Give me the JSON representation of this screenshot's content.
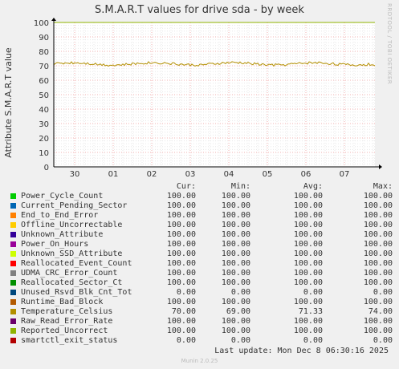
{
  "chart_data": {
    "type": "line",
    "title": "S.M.A.R.T values for drive sda - by week",
    "ylabel": "Attribute S.M.A.R.T value",
    "xlabel": "",
    "ylim": [
      0,
      100
    ],
    "yticks": [
      0,
      10,
      20,
      30,
      40,
      50,
      60,
      70,
      80,
      90,
      100
    ],
    "xticks": [
      "30",
      "01",
      "02",
      "03",
      "04",
      "05",
      "06",
      "07"
    ],
    "grid": true,
    "legend_position": "bottom",
    "columns": [
      "Cur:",
      "Min:",
      "Avg:",
      "Max:"
    ],
    "series": [
      {
        "name": "Power_Cycle_Count",
        "color": "#00cc00",
        "cur": "100.00",
        "min": "100.00",
        "avg": "100.00",
        "max": "100.00"
      },
      {
        "name": "Current_Pending_Sector",
        "color": "#0066b3",
        "cur": "100.00",
        "min": "100.00",
        "avg": "100.00",
        "max": "100.00"
      },
      {
        "name": "End_to_End_Error",
        "color": "#ff8000",
        "cur": "100.00",
        "min": "100.00",
        "avg": "100.00",
        "max": "100.00"
      },
      {
        "name": "Offline_Uncorrectable",
        "color": "#ffcc00",
        "cur": "100.00",
        "min": "100.00",
        "avg": "100.00",
        "max": "100.00"
      },
      {
        "name": "Unknown_Attribute",
        "color": "#330099",
        "cur": "100.00",
        "min": "100.00",
        "avg": "100.00",
        "max": "100.00"
      },
      {
        "name": "Power_On_Hours",
        "color": "#990099",
        "cur": "100.00",
        "min": "100.00",
        "avg": "100.00",
        "max": "100.00"
      },
      {
        "name": "Unknown_SSD_Attribute",
        "color": "#ccff00",
        "cur": "100.00",
        "min": "100.00",
        "avg": "100.00",
        "max": "100.00"
      },
      {
        "name": "Reallocated_Event_Count",
        "color": "#ff0000",
        "cur": "100.00",
        "min": "100.00",
        "avg": "100.00",
        "max": "100.00"
      },
      {
        "name": "UDMA_CRC_Error_Count",
        "color": "#808080",
        "cur": "100.00",
        "min": "100.00",
        "avg": "100.00",
        "max": "100.00"
      },
      {
        "name": "Reallocated_Sector_Ct",
        "color": "#008f00",
        "cur": "100.00",
        "min": "100.00",
        "avg": "100.00",
        "max": "100.00"
      },
      {
        "name": "Unused_Rsvd_Blk_Cnt_Tot",
        "color": "#00487d",
        "cur": "0.00",
        "min": "0.00",
        "avg": "0.00",
        "max": "0.00"
      },
      {
        "name": "Runtime_Bad_Block",
        "color": "#b35a00",
        "cur": "100.00",
        "min": "100.00",
        "avg": "100.00",
        "max": "100.00"
      },
      {
        "name": "Temperature_Celsius",
        "color": "#b38f00",
        "cur": "70.00",
        "min": "69.00",
        "avg": "71.33",
        "max": "74.00"
      },
      {
        "name": "Raw_Read_Error_Rate",
        "color": "#6b006b",
        "cur": "100.00",
        "min": "100.00",
        "avg": "100.00",
        "max": "100.00"
      },
      {
        "name": "Reported_Uncorrect",
        "color": "#8fb300",
        "cur": "100.00",
        "min": "100.00",
        "avg": "100.00",
        "max": "100.00"
      },
      {
        "name": "smartctl_exit_status",
        "color": "#b30000",
        "cur": "0.00",
        "min": "0.00",
        "avg": "0.00",
        "max": "0.00"
      }
    ]
  },
  "last_update": "Last update:  Mon Dec  8 06:30:16 2025",
  "watermark": "RRDTOOL / TOBI OETIKER",
  "version": "Munin 2.0.25"
}
